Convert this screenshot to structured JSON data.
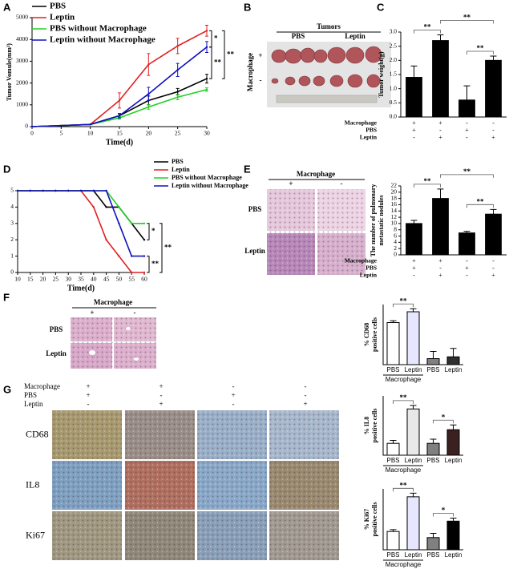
{
  "panel_labels": [
    "A",
    "B",
    "C",
    "D",
    "E",
    "F",
    "G"
  ],
  "panel_b": {
    "title": "Tumors",
    "columns": [
      "PBS",
      "Leptin"
    ],
    "row_title": "Macrophage",
    "rows": [
      "+",
      "-"
    ]
  },
  "panel_e": {
    "title": "Macrophage",
    "columns": [
      "+",
      "-"
    ],
    "rows": [
      "PBS",
      "Leptin"
    ]
  },
  "panel_f": {
    "title": "Macrophage",
    "columns": [
      "+",
      "-"
    ],
    "rows": [
      "PBS",
      "Leptin"
    ]
  },
  "panel_g": {
    "conditions": [
      {
        "name": "Macrophage",
        "signs": [
          "+",
          "+",
          "-",
          "-"
        ]
      },
      {
        "name": "PBS",
        "signs": [
          "+",
          "-",
          "+",
          "-"
        ]
      },
      {
        "name": "Leptin",
        "signs": [
          "-",
          "+",
          "-",
          "+"
        ]
      }
    ],
    "rows": [
      "CD68",
      "IL8",
      "Ki67"
    ]
  },
  "chart_data": [
    {
      "type": "line",
      "xlabel": "Time(d)",
      "ylabel": "Tumor Vomule(mm³)",
      "x": [
        0,
        10,
        15,
        20,
        25,
        30
      ],
      "xlim": [
        0,
        30
      ],
      "xticks": [
        0,
        5,
        10,
        15,
        20,
        25,
        30
      ],
      "ylim": [
        0,
        5000
      ],
      "yticks": [
        0,
        1000,
        2000,
        3000,
        4000,
        5000
      ],
      "legend": "upper left",
      "series": [
        {
          "name": "PBS",
          "color": "#000000",
          "values": [
            0,
            100,
            500,
            1200,
            1600,
            2200
          ],
          "errors": [
            0,
            0,
            80,
            200,
            150,
            200
          ]
        },
        {
          "name": "Leptin",
          "color": "#e02020",
          "values": [
            0,
            100,
            1200,
            2850,
            3700,
            4400
          ],
          "errors": [
            0,
            0,
            350,
            500,
            350,
            250
          ]
        },
        {
          "name": "PBS without Macrophage",
          "color": "#20d020",
          "values": [
            0,
            100,
            400,
            900,
            1350,
            1700
          ],
          "errors": [
            0,
            0,
            60,
            100,
            120,
            80
          ]
        },
        {
          "name": "Leptin without Macrophage",
          "color": "#1010c0",
          "values": [
            0,
            100,
            500,
            1500,
            2600,
            3650
          ],
          "errors": [
            0,
            0,
            100,
            300,
            300,
            250
          ]
        }
      ],
      "annotations": [
        "*",
        "**",
        "**"
      ]
    },
    {
      "type": "bar",
      "ylabel": "Tumor weight(g)",
      "values": [
        1.4,
        2.7,
        0.6,
        2.0
      ],
      "errors": [
        0.4,
        0.2,
        0.5,
        0.15
      ],
      "colors": [
        "#000000",
        "#000000",
        "#000000",
        "#000000"
      ],
      "ylim": [
        0,
        3.0
      ],
      "yticks": [
        {
          "value": 0,
          "label": "0.0"
        },
        0.5,
        {
          "value": 1,
          "label": "1.0"
        },
        1.5,
        {
          "value": 2,
          "label": "2.0"
        },
        2.5,
        {
          "value": 3,
          "label": "3.0"
        }
      ],
      "conditions": [
        {
          "name": "Macrophage",
          "signs": [
            "+",
            "+",
            "-",
            "-"
          ]
        },
        {
          "name": "PBS",
          "signs": [
            "+",
            "-",
            "+",
            "-"
          ]
        },
        {
          "name": "Leptin",
          "signs": [
            "-",
            "+",
            "-",
            "+"
          ]
        }
      ],
      "annotations": [
        "**",
        "**",
        "**"
      ]
    },
    {
      "type": "line",
      "xlabel": "Time(d)",
      "ylabel": "Number of mice",
      "x": [
        10,
        15,
        20,
        25,
        30,
        35,
        40,
        45,
        50,
        55,
        60
      ],
      "xlim": [
        10,
        60
      ],
      "xticks": [
        10,
        15,
        20,
        25,
        30,
        35,
        40,
        45,
        50,
        55,
        60
      ],
      "ylim": [
        0,
        5
      ],
      "yticks": [
        0,
        1,
        2,
        3,
        4,
        5
      ],
      "legend": "upper right",
      "series": [
        {
          "name": "PBS",
          "color": "#000000",
          "values": [
            5,
            5,
            5,
            5,
            5,
            5,
            5,
            4,
            4,
            3,
            2
          ]
        },
        {
          "name": "Leptin",
          "color": "#e02020",
          "values": [
            5,
            5,
            5,
            5,
            5,
            5,
            4,
            2,
            1,
            0,
            0
          ]
        },
        {
          "name": "PBS without Macrophage",
          "color": "#20d020",
          "values": [
            5,
            5,
            5,
            5,
            5,
            5,
            5,
            5,
            4,
            3,
            3
          ]
        },
        {
          "name": "Leptin without Macrophage",
          "color": "#1010c0",
          "values": [
            5,
            5,
            5,
            5,
            5,
            5,
            5,
            5,
            3,
            1,
            1
          ]
        }
      ],
      "annotations": [
        "*",
        "**",
        "**"
      ]
    },
    {
      "type": "bar",
      "ylabel": [
        "The number of pulmonary",
        "metastatic nodules"
      ],
      "values": [
        10,
        18,
        7,
        13
      ],
      "errors": [
        1,
        3,
        0.5,
        1.5
      ],
      "colors": [
        "#000000",
        "#000000",
        "#000000",
        "#000000"
      ],
      "ylim": [
        0,
        22
      ],
      "yticks": [
        0,
        2,
        4,
        6,
        8,
        10,
        12,
        14,
        16,
        18,
        20,
        22
      ],
      "conditions": [
        {
          "name": "Macrophage",
          "signs": [
            "+",
            "+",
            "-",
            "-"
          ]
        },
        {
          "name": "PBS",
          "signs": [
            "+",
            "-",
            "+",
            "-"
          ]
        },
        {
          "name": "Leptin",
          "signs": [
            "-",
            "+",
            "-",
            "+"
          ]
        }
      ],
      "annotations": [
        "**",
        "**",
        "**"
      ]
    },
    {
      "type": "bar",
      "ylabel": [
        "% CD68",
        "positive cells"
      ],
      "categories": [
        "PBS",
        "Leptin",
        "PBS",
        "Leptin"
      ],
      "group_label": "Macrophage",
      "values": [
        70,
        88,
        10,
        13
      ],
      "errors": [
        3,
        5,
        12,
        14
      ],
      "colors": [
        "#ffffff",
        "#e6e6ff",
        "#808080",
        "#303030"
      ],
      "ylim": [
        0,
        100
      ],
      "annotations": [
        "**"
      ]
    },
    {
      "type": "bar",
      "ylabel": [
        "% IL8",
        "positive cells"
      ],
      "categories": [
        "PBS",
        "Leptin",
        "PBS",
        "Leptin"
      ],
      "group_label": "Macrophage",
      "values": [
        20,
        78,
        20,
        43
      ],
      "errors": [
        5,
        6,
        7,
        8
      ],
      "colors": [
        "#ffffff",
        "#e8e8e8",
        "#808080",
        "#3a2020"
      ],
      "ylim": [
        0,
        100
      ],
      "annotations": [
        "**",
        "*"
      ]
    },
    {
      "type": "bar",
      "ylabel": [
        "% Ki67",
        "positive cells"
      ],
      "categories": [
        "PBS",
        "Leptin",
        "PBS",
        "Leptin"
      ],
      "group_label": "Macrophage",
      "values": [
        30,
        87,
        20,
        47
      ],
      "errors": [
        3,
        6,
        7,
        5
      ],
      "colors": [
        "#ffffff",
        "#e6e6ff",
        "#808080",
        "#000000"
      ],
      "ylim": [
        0,
        100
      ],
      "annotations": [
        "**",
        "*"
      ]
    }
  ]
}
